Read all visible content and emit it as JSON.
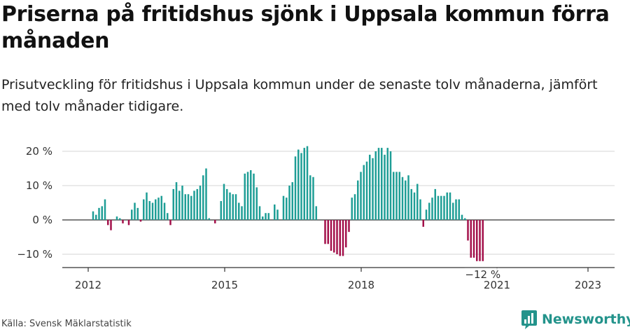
{
  "header": {
    "title": "Priserna på fritidshus sjönk i Uppsala kommun förra månaden",
    "subtitle": "Prisutveckling för fritidshus i Uppsala kommun under de senaste tolv månaderna, jämfört med tolv månader tidigare."
  },
  "footer": {
    "source": "Källa: Svensk Mäklarstatistik",
    "brand": "Newsworthy"
  },
  "colors": {
    "positive": "#1f9e96",
    "negative": "#a3104a",
    "brand": "#23938b"
  },
  "chart_data": {
    "type": "bar",
    "x_start": "2012-01",
    "x_end": "2023-04",
    "ylim": [
      -14,
      22
    ],
    "yticks": [
      -10,
      0,
      10,
      20
    ],
    "ytick_labels": [
      "−10 %",
      "0 %",
      "10 %",
      "20 %"
    ],
    "xtick_labels": [
      "2012",
      "2015",
      "2018",
      "2021",
      "2023"
    ],
    "grid": true,
    "last_label": "−12 %",
    "values": [
      2.5,
      1.5,
      3.5,
      4,
      6,
      -1.5,
      -3,
      0,
      1,
      0.5,
      -1,
      0,
      -1.5,
      3,
      5,
      3.5,
      -0.5,
      6,
      8,
      5.5,
      5,
      6,
      6.5,
      7,
      5,
      2,
      -1.5,
      9,
      11,
      8.5,
      10,
      7.5,
      7.5,
      7,
      8.5,
      9,
      10,
      13,
      15,
      0.5,
      0,
      -1,
      0,
      5.5,
      10.5,
      9,
      8,
      7.5,
      7.5,
      5,
      4,
      13.5,
      14,
      14.5,
      13.5,
      9.5,
      4,
      1,
      2,
      2,
      0,
      4.5,
      3,
      0,
      7,
      6.5,
      10,
      11,
      18.5,
      20.5,
      19.5,
      21,
      21.5,
      13,
      12.5,
      4,
      0,
      0,
      -7,
      -7,
      -9,
      -9.5,
      -10,
      -10.5,
      -10.5,
      -8,
      -3.5,
      6.5,
      7.5,
      11.5,
      14,
      16,
      17,
      19,
      18,
      20,
      21,
      21,
      19,
      21,
      20,
      14,
      14,
      14,
      12.5,
      11.5,
      13,
      9,
      8,
      10.5,
      6,
      -2,
      3,
      5,
      6.5,
      9,
      7,
      7,
      7,
      8,
      8,
      5,
      6,
      6,
      1.5,
      0.5,
      -6,
      -11,
      -11,
      -12,
      -12,
      -12
    ]
  }
}
